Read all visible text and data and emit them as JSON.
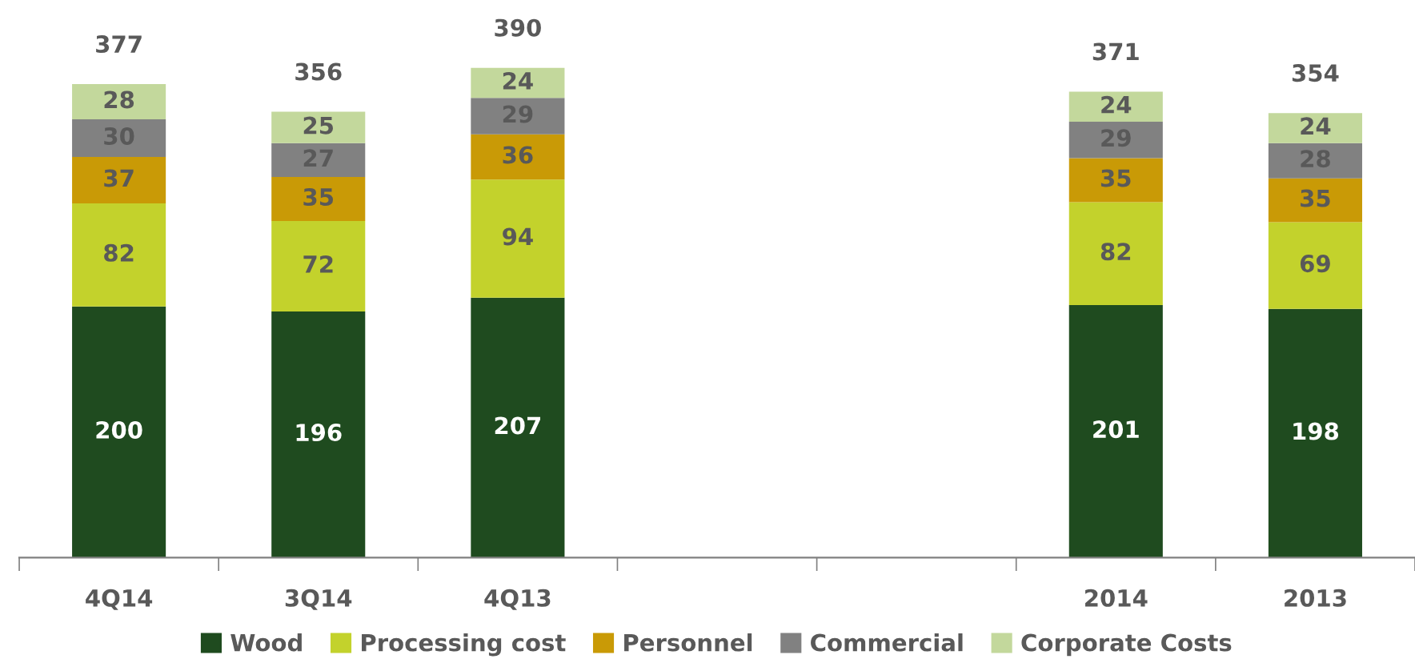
{
  "chart_data": {
    "type": "bar",
    "stacked": true,
    "data_labels": true,
    "legend": "bottom",
    "grid": false,
    "categories": [
      "4Q14",
      "3Q14",
      "4Q13",
      null,
      null,
      "2014",
      "2013"
    ],
    "series": [
      {
        "name": "Wood",
        "color": "#1f4b1f",
        "values": [
          200,
          196,
          207,
          null,
          null,
          201,
          198
        ]
      },
      {
        "name": "Processing cost",
        "color": "#c3d22c",
        "values": [
          82,
          72,
          94,
          null,
          null,
          82,
          69
        ]
      },
      {
        "name": "Personnel",
        "color": "#c99a06",
        "values": [
          37,
          35,
          36,
          null,
          null,
          35,
          35
        ]
      },
      {
        "name": "Commercial",
        "color": "#818181",
        "values": [
          30,
          27,
          29,
          null,
          null,
          29,
          28
        ]
      },
      {
        "name": "Corporate Costs",
        "color": "#c3d89c",
        "values": [
          28,
          25,
          24,
          null,
          null,
          24,
          24
        ]
      }
    ],
    "totals": [
      "377",
      "356",
      "390",
      null,
      null,
      "371",
      "354"
    ]
  }
}
